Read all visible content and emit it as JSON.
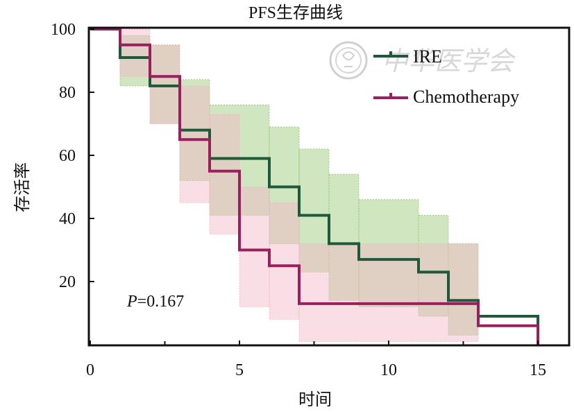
{
  "chart_data": {
    "type": "line",
    "subtype": "kaplan-meier-step",
    "title": "PFS生存曲线",
    "xlabel": "时间",
    "ylabel": "存活率",
    "xlim": [
      0,
      16
    ],
    "ylim": [
      0,
      100
    ],
    "xticks": [
      0,
      5,
      10,
      15
    ],
    "yticks": [
      20,
      40,
      60,
      80,
      100
    ],
    "grid": false,
    "legend_position": "top-right",
    "annotation": {
      "p_label": "P",
      "p_value": "=0.167"
    },
    "watermark": "中华医学会",
    "series": [
      {
        "name": "IRE",
        "color": "#1e5a3a",
        "band_color": "#8fc46a",
        "x": [
          0,
          1,
          2,
          3,
          4,
          6,
          7,
          8,
          9,
          11,
          12,
          13,
          15
        ],
        "y": [
          100,
          91,
          82,
          68,
          59,
          50,
          41,
          32,
          27,
          23,
          14,
          9,
          0
        ],
        "ci_upper": [
          100,
          98,
          95,
          84,
          76,
          69,
          62,
          54,
          46,
          41,
          32,
          0,
          0
        ],
        "ci_lower": [
          100,
          82,
          70,
          52,
          41,
          32,
          23,
          14,
          12,
          9,
          3,
          0,
          0
        ]
      },
      {
        "name": "Chemotherapy",
        "color": "#9b1f5e",
        "band_color": "#f2b5c8",
        "x": [
          0,
          1,
          2,
          3,
          4,
          5,
          6,
          7,
          13,
          15
        ],
        "y": [
          100,
          95,
          85,
          65,
          55,
          30,
          25,
          13,
          6,
          0
        ],
        "ci_upper": [
          100,
          100,
          95,
          82,
          73,
          50,
          45,
          32,
          0,
          0
        ],
        "ci_lower": [
          100,
          85,
          70,
          45,
          35,
          12,
          8,
          1,
          0,
          0
        ]
      }
    ]
  }
}
